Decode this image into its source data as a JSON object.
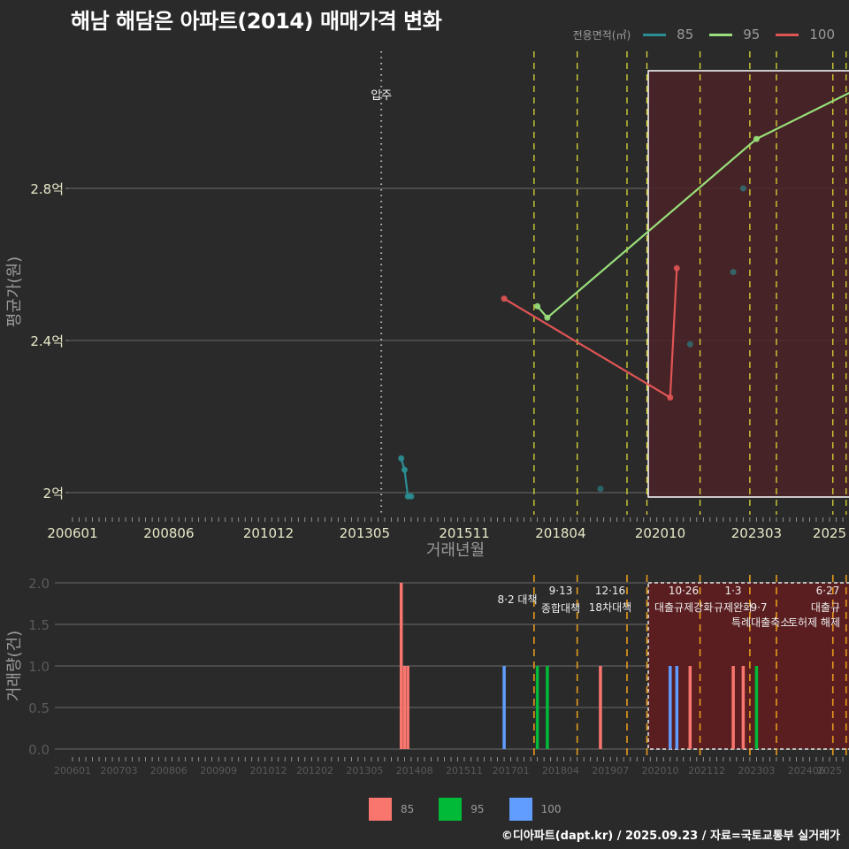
{
  "header": {
    "title": "해남 해담은 아파트(2014) 매매가격 변화"
  },
  "legend_top": {
    "title": "전용면적(㎡)",
    "items": [
      {
        "label": "85",
        "color": "#2a8f94"
      },
      {
        "label": "95",
        "color": "#99e07a"
      },
      {
        "label": "100",
        "color": "#e05454"
      }
    ]
  },
  "legend_bottom": {
    "items": [
      {
        "label": "85",
        "color": "#f8766d"
      },
      {
        "label": "95",
        "color": "#00ba38"
      },
      {
        "label": "100",
        "color": "#619cff"
      }
    ]
  },
  "footer": {
    "credit": "©디아파트(dapt.kr) / 2025.09.23 / 자료=국토교통부 실거래가"
  },
  "chart_data": [
    {
      "type": "line",
      "title": "해남 해담은 아파트(2014) 매매가격 변화",
      "xlabel": "거래년월",
      "ylabel": "평균가(원)",
      "x_ticks": [
        "200601",
        "200806",
        "201012",
        "201305",
        "201511",
        "201804",
        "202010",
        "202303",
        "2025"
      ],
      "y_ticks": [
        "2억",
        "2.4억",
        "2.8억"
      ],
      "ylim": [
        1.93,
        3.15
      ],
      "y_unit": "억",
      "annotation": {
        "label": "입주",
        "x": "201310"
      },
      "highlight_box": {
        "x_start": "202008",
        "x_end": "202509"
      },
      "series": [
        {
          "name": "85",
          "color": "#2a8f94",
          "mode": "line+markers",
          "points": [
            [
              "201404",
              2.09
            ],
            [
              "201405",
              2.06
            ],
            [
              "201406",
              1.99
            ],
            [
              "201407",
              1.99
            ]
          ]
        },
        {
          "name": "85-scatter",
          "color": "#2a8f94",
          "mode": "markers",
          "points": [
            [
              "201904",
              2.01
            ],
            [
              "202107",
              2.39
            ],
            [
              "202208",
              2.58
            ],
            [
              "202211",
              2.8
            ]
          ]
        },
        {
          "name": "95",
          "color": "#99e07a",
          "mode": "line+markers",
          "points": [
            [
              "201709",
              2.49
            ],
            [
              "201712",
              2.46
            ],
            [
              "202303",
              2.93
            ],
            [
              "202509",
              3.06
            ]
          ]
        },
        {
          "name": "100",
          "color": "#e05454",
          "mode": "line+markers",
          "points": [
            [
              "201611",
              2.51
            ],
            [
              "202101",
              2.25
            ],
            [
              "202103",
              2.59
            ]
          ]
        }
      ]
    },
    {
      "type": "bar",
      "xlabel": "",
      "ylabel": "거래량(건)",
      "x_ticks": [
        "200601",
        "200703",
        "200806",
        "200909",
        "201012",
        "201202",
        "201305",
        "201408",
        "201511",
        "201701",
        "201804",
        "201907",
        "202010",
        "202112",
        "202303",
        "202406",
        "2025"
      ],
      "y_ticks": [
        "0.0",
        "0.5",
        "1.0",
        "1.5",
        "2.0"
      ],
      "ylim": [
        0,
        2.0
      ],
      "highlight_box": {
        "x_start": "202008",
        "x_end": "202509"
      },
      "policy_events": [
        {
          "x": "201708",
          "date": "8·2 대책",
          "label": ""
        },
        {
          "x": "201809",
          "date": "9·13",
          "label": "종합대책"
        },
        {
          "x": "201912",
          "date": "12·16",
          "label": "18차대책"
        },
        {
          "x": "202006",
          "date": "",
          "label": ""
        },
        {
          "x": "202110",
          "date": "10·26",
          "label": "대출규제강화"
        },
        {
          "x": "202301",
          "date": "1·3",
          "label": "규제완화"
        },
        {
          "x": "202309",
          "date": "9·7",
          "label": "특례대출축소"
        },
        {
          "x": "202502",
          "date": "",
          "label": "토허제 해제"
        },
        {
          "x": "202506",
          "date": "6·27",
          "label": "대출규제"
        }
      ],
      "bars": [
        {
          "x": "201404",
          "series": "85",
          "value": 2
        },
        {
          "x": "201405",
          "series": "85",
          "value": 1
        },
        {
          "x": "201406",
          "series": "85",
          "value": 1
        },
        {
          "x": "201611",
          "series": "100",
          "value": 1
        },
        {
          "x": "201709",
          "series": "95",
          "value": 1
        },
        {
          "x": "201712",
          "series": "95",
          "value": 1
        },
        {
          "x": "201904",
          "series": "85",
          "value": 1
        },
        {
          "x": "202101",
          "series": "100",
          "value": 1
        },
        {
          "x": "202103",
          "series": "100",
          "value": 1
        },
        {
          "x": "202107",
          "series": "85",
          "value": 1
        },
        {
          "x": "202208",
          "series": "85",
          "value": 1
        },
        {
          "x": "202211",
          "series": "85",
          "value": 1
        },
        {
          "x": "202303",
          "series": "95",
          "value": 1
        },
        {
          "x": "202509",
          "series": "95",
          "value": 1
        }
      ]
    }
  ]
}
